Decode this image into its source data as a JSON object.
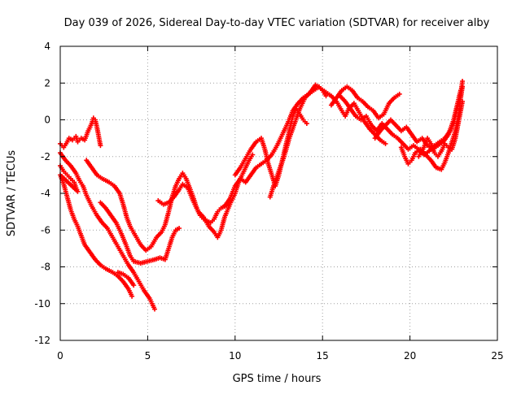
{
  "chart_data": {
    "type": "scatter",
    "title": "Day 039 of 2026, Sidereal Day-to-day VTEC variation (SDTVAR) for receiver alby",
    "xlabel": "GPS time / hours",
    "ylabel": "SDTVAR / TECUs",
    "xlim": [
      0,
      25
    ],
    "ylim": [
      -12,
      4
    ],
    "xticks": [
      "0",
      "5",
      "10",
      "15",
      "20",
      "25"
    ],
    "yticks": [
      "4",
      "2",
      "0",
      "-2",
      "-4",
      "-6",
      "-8",
      "-10",
      "-12"
    ],
    "grid": true,
    "legend": "none",
    "marker": "+",
    "series": [
      {
        "name": "alby SDTVAR",
        "color": "#ff0000",
        "points": [
          [
            0.0,
            -1.3
          ],
          [
            0.2,
            -1.5
          ],
          [
            0.4,
            -1.2
          ],
          [
            0.5,
            -1.0
          ],
          [
            0.7,
            -1.1
          ],
          [
            0.9,
            -0.9
          ],
          [
            1.0,
            -1.2
          ],
          [
            1.2,
            -1.0
          ],
          [
            1.4,
            -1.1
          ],
          [
            1.6,
            -0.6
          ],
          [
            1.8,
            -0.2
          ],
          [
            1.9,
            0.1
          ],
          [
            2.0,
            0.0
          ],
          [
            2.1,
            -0.4
          ],
          [
            2.2,
            -0.9
          ],
          [
            2.3,
            -1.4
          ],
          [
            0.0,
            -2.5
          ],
          [
            0.2,
            -2.8
          ],
          [
            0.4,
            -3.0
          ],
          [
            0.6,
            -3.2
          ],
          [
            0.8,
            -3.4
          ],
          [
            0.9,
            -3.7
          ],
          [
            1.0,
            -3.9
          ],
          [
            0.0,
            -3.0
          ],
          [
            0.2,
            -3.5
          ],
          [
            0.4,
            -4.2
          ],
          [
            0.6,
            -4.9
          ],
          [
            0.8,
            -5.4
          ],
          [
            1.0,
            -5.8
          ],
          [
            1.2,
            -6.3
          ],
          [
            1.4,
            -6.8
          ],
          [
            1.7,
            -7.2
          ],
          [
            2.0,
            -7.6
          ],
          [
            2.3,
            -7.9
          ],
          [
            2.6,
            -8.1
          ],
          [
            3.0,
            -8.3
          ],
          [
            3.3,
            -8.5
          ],
          [
            3.6,
            -8.8
          ],
          [
            3.9,
            -9.2
          ],
          [
            4.1,
            -9.6
          ],
          [
            0.0,
            -1.8
          ],
          [
            0.3,
            -2.2
          ],
          [
            0.6,
            -2.5
          ],
          [
            0.9,
            -2.9
          ],
          [
            1.1,
            -3.3
          ],
          [
            1.3,
            -3.6
          ],
          [
            1.5,
            -4.1
          ],
          [
            1.8,
            -4.7
          ],
          [
            2.1,
            -5.2
          ],
          [
            2.4,
            -5.6
          ],
          [
            2.7,
            -5.9
          ],
          [
            3.0,
            -6.4
          ],
          [
            3.3,
            -6.9
          ],
          [
            3.6,
            -7.4
          ],
          [
            3.9,
            -7.9
          ],
          [
            4.2,
            -8.3
          ],
          [
            4.5,
            -8.8
          ],
          [
            4.8,
            -9.3
          ],
          [
            5.1,
            -9.7
          ],
          [
            5.4,
            -10.3
          ],
          [
            1.5,
            -2.2
          ],
          [
            1.8,
            -2.6
          ],
          [
            2.1,
            -3.0
          ],
          [
            2.4,
            -3.2
          ],
          [
            2.8,
            -3.4
          ],
          [
            3.1,
            -3.6
          ],
          [
            3.4,
            -4.0
          ],
          [
            3.6,
            -4.6
          ],
          [
            3.8,
            -5.3
          ],
          [
            4.0,
            -5.8
          ],
          [
            4.3,
            -6.3
          ],
          [
            4.6,
            -6.8
          ],
          [
            4.9,
            -7.1
          ],
          [
            5.2,
            -6.9
          ],
          [
            5.5,
            -6.4
          ],
          [
            5.8,
            -6.1
          ],
          [
            6.0,
            -5.7
          ],
          [
            6.2,
            -5.0
          ],
          [
            6.4,
            -4.2
          ],
          [
            6.6,
            -3.6
          ],
          [
            6.8,
            -3.2
          ],
          [
            7.0,
            -2.9
          ],
          [
            7.2,
            -3.2
          ],
          [
            7.4,
            -3.7
          ],
          [
            7.6,
            -4.2
          ],
          [
            7.8,
            -4.8
          ],
          [
            8.0,
            -5.2
          ],
          [
            8.2,
            -5.4
          ],
          [
            8.4,
            -5.5
          ],
          [
            8.6,
            -5.6
          ],
          [
            8.8,
            -5.4
          ],
          [
            9.0,
            -5.0
          ],
          [
            9.2,
            -4.8
          ],
          [
            9.4,
            -4.7
          ],
          [
            9.6,
            -4.6
          ],
          [
            2.3,
            -4.5
          ],
          [
            2.6,
            -4.8
          ],
          [
            2.9,
            -5.2
          ],
          [
            3.2,
            -5.6
          ],
          [
            3.5,
            -6.2
          ],
          [
            3.8,
            -6.9
          ],
          [
            4.0,
            -7.4
          ],
          [
            4.2,
            -7.7
          ],
          [
            4.6,
            -7.8
          ],
          [
            5.0,
            -7.7
          ],
          [
            5.4,
            -7.6
          ],
          [
            5.7,
            -7.5
          ],
          [
            6.0,
            -7.6
          ],
          [
            6.2,
            -7.0
          ],
          [
            6.4,
            -6.4
          ],
          [
            6.6,
            -6.0
          ],
          [
            6.8,
            -5.9
          ],
          [
            3.3,
            -8.3
          ],
          [
            3.6,
            -8.4
          ],
          [
            3.9,
            -8.6
          ],
          [
            4.2,
            -9.0
          ],
          [
            5.6,
            -4.4
          ],
          [
            5.9,
            -4.6
          ],
          [
            6.2,
            -4.5
          ],
          [
            6.5,
            -4.2
          ],
          [
            6.8,
            -3.8
          ],
          [
            7.0,
            -3.5
          ],
          [
            7.3,
            -3.7
          ],
          [
            7.6,
            -4.4
          ],
          [
            7.9,
            -5.0
          ],
          [
            8.2,
            -5.3
          ],
          [
            8.5,
            -5.8
          ],
          [
            8.8,
            -6.1
          ],
          [
            9.0,
            -6.4
          ],
          [
            9.2,
            -6.0
          ],
          [
            9.4,
            -5.3
          ],
          [
            9.7,
            -4.6
          ],
          [
            10.0,
            -4.0
          ],
          [
            10.2,
            -3.4
          ],
          [
            10.4,
            -3.0
          ],
          [
            10.6,
            -2.6
          ],
          [
            10.8,
            -2.2
          ],
          [
            11.0,
            -1.9
          ],
          [
            9.4,
            -4.7
          ],
          [
            9.7,
            -4.3
          ],
          [
            10.0,
            -3.6
          ],
          [
            10.3,
            -3.2
          ],
          [
            10.6,
            -3.4
          ],
          [
            10.9,
            -3.0
          ],
          [
            11.2,
            -2.6
          ],
          [
            11.5,
            -2.4
          ],
          [
            11.8,
            -2.2
          ],
          [
            12.1,
            -1.9
          ],
          [
            12.4,
            -1.4
          ],
          [
            12.7,
            -0.8
          ],
          [
            13.0,
            -0.2
          ],
          [
            13.3,
            0.5
          ],
          [
            13.6,
            0.9
          ],
          [
            13.9,
            1.2
          ],
          [
            14.2,
            1.4
          ],
          [
            14.5,
            1.6
          ],
          [
            14.8,
            1.8
          ],
          [
            15.0,
            1.6
          ],
          [
            15.2,
            1.3
          ],
          [
            10.0,
            -3.0
          ],
          [
            10.3,
            -2.6
          ],
          [
            10.6,
            -2.1
          ],
          [
            10.9,
            -1.6
          ],
          [
            11.2,
            -1.2
          ],
          [
            11.5,
            -1.0
          ],
          [
            11.7,
            -1.6
          ],
          [
            11.9,
            -2.4
          ],
          [
            12.1,
            -3.0
          ],
          [
            12.3,
            -3.6
          ],
          [
            12.5,
            -3.0
          ],
          [
            12.7,
            -2.2
          ],
          [
            12.9,
            -1.4
          ],
          [
            13.1,
            -0.6
          ],
          [
            13.3,
            0.2
          ],
          [
            13.5,
            0.6
          ],
          [
            13.7,
            0.3
          ],
          [
            13.9,
            0.0
          ],
          [
            14.1,
            -0.2
          ],
          [
            12.0,
            -4.2
          ],
          [
            12.2,
            -3.6
          ],
          [
            12.5,
            -2.8
          ],
          [
            12.8,
            -2.0
          ],
          [
            13.1,
            -1.0
          ],
          [
            13.4,
            -0.2
          ],
          [
            13.7,
            0.6
          ],
          [
            14.0,
            1.2
          ],
          [
            14.3,
            1.5
          ],
          [
            14.6,
            1.9
          ],
          [
            14.9,
            1.7
          ],
          [
            15.2,
            1.5
          ],
          [
            15.5,
            1.3
          ],
          [
            15.8,
            1.0
          ],
          [
            16.1,
            0.5
          ],
          [
            16.3,
            0.2
          ],
          [
            16.5,
            0.6
          ],
          [
            16.8,
            0.9
          ],
          [
            17.1,
            0.4
          ],
          [
            17.4,
            -0.1
          ],
          [
            17.7,
            -0.5
          ],
          [
            18.0,
            -0.8
          ],
          [
            18.3,
            -1.1
          ],
          [
            18.6,
            -1.3
          ],
          [
            15.5,
            0.8
          ],
          [
            15.8,
            1.2
          ],
          [
            16.1,
            1.6
          ],
          [
            16.4,
            1.8
          ],
          [
            16.7,
            1.6
          ],
          [
            17.0,
            1.2
          ],
          [
            17.3,
            1.0
          ],
          [
            17.6,
            0.7
          ],
          [
            17.9,
            0.5
          ],
          [
            18.2,
            0.1
          ],
          [
            18.5,
            0.3
          ],
          [
            18.8,
            0.9
          ],
          [
            19.1,
            1.2
          ],
          [
            19.4,
            1.4
          ],
          [
            16.0,
            1.3
          ],
          [
            16.3,
            1.0
          ],
          [
            16.6,
            0.6
          ],
          [
            16.9,
            0.2
          ],
          [
            17.2,
            0.0
          ],
          [
            17.5,
            0.2
          ],
          [
            17.8,
            -0.3
          ],
          [
            18.1,
            -0.6
          ],
          [
            18.4,
            -0.2
          ],
          [
            18.7,
            -0.5
          ],
          [
            19.0,
            -0.8
          ],
          [
            19.3,
            -1.0
          ],
          [
            19.6,
            -1.3
          ],
          [
            19.9,
            -1.6
          ],
          [
            20.2,
            -1.4
          ],
          [
            20.5,
            -1.6
          ],
          [
            20.8,
            -1.9
          ],
          [
            21.1,
            -1.7
          ],
          [
            21.4,
            -1.4
          ],
          [
            21.7,
            -1.2
          ],
          [
            22.0,
            -1.0
          ],
          [
            22.3,
            -0.6
          ],
          [
            22.5,
            -0.2
          ],
          [
            22.7,
            0.6
          ],
          [
            22.9,
            1.4
          ],
          [
            23.0,
            2.1
          ],
          [
            18.0,
            -1.0
          ],
          [
            18.3,
            -0.6
          ],
          [
            18.6,
            -0.3
          ],
          [
            18.9,
            0.0
          ],
          [
            19.2,
            -0.3
          ],
          [
            19.5,
            -0.6
          ],
          [
            19.8,
            -0.4
          ],
          [
            20.1,
            -0.8
          ],
          [
            20.4,
            -1.2
          ],
          [
            20.7,
            -1.0
          ],
          [
            21.0,
            -1.4
          ],
          [
            21.3,
            -1.6
          ],
          [
            21.6,
            -1.4
          ],
          [
            21.9,
            -1.2
          ],
          [
            22.2,
            -0.8
          ],
          [
            22.5,
            0.0
          ],
          [
            22.7,
            0.8
          ],
          [
            22.9,
            1.6
          ],
          [
            19.5,
            -1.5
          ],
          [
            19.7,
            -2.0
          ],
          [
            19.9,
            -2.4
          ],
          [
            20.1,
            -2.2
          ],
          [
            20.3,
            -1.8
          ],
          [
            20.6,
            -1.6
          ],
          [
            20.9,
            -1.9
          ],
          [
            21.2,
            -2.2
          ],
          [
            21.5,
            -2.6
          ],
          [
            21.8,
            -2.7
          ],
          [
            22.0,
            -2.3
          ],
          [
            22.2,
            -1.8
          ],
          [
            22.4,
            -1.2
          ],
          [
            22.6,
            -0.6
          ],
          [
            22.8,
            0.4
          ],
          [
            22.9,
            1.2
          ],
          [
            23.0,
            1.8
          ],
          [
            20.5,
            -2.0
          ],
          [
            20.8,
            -1.5
          ],
          [
            21.0,
            -1.0
          ],
          [
            21.2,
            -1.3
          ],
          [
            21.4,
            -1.8
          ],
          [
            21.6,
            -2.0
          ],
          [
            21.8,
            -1.7
          ],
          [
            22.0,
            -1.3
          ],
          [
            22.2,
            -1.5
          ],
          [
            22.4,
            -1.6
          ],
          [
            22.6,
            -1.0
          ],
          [
            22.8,
            0.0
          ],
          [
            23.0,
            1.0
          ]
        ]
      }
    ]
  }
}
